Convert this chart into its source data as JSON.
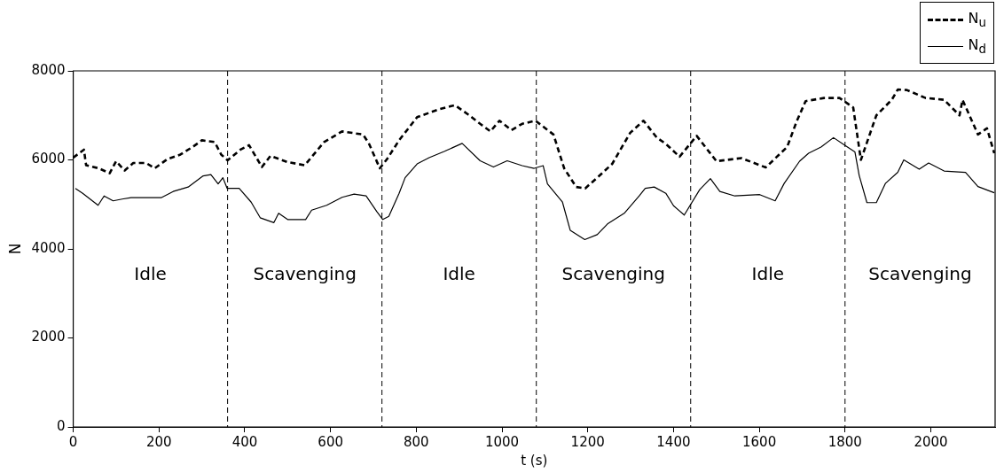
{
  "chart_data": {
    "type": "line",
    "xlabel": "t (s)",
    "ylabel": "N",
    "xlim": [
      0,
      2150
    ],
    "xticks": [
      0,
      200,
      400,
      600,
      800,
      1000,
      1200,
      1400,
      1600,
      1800,
      2000
    ],
    "ylim": [
      0,
      8000
    ],
    "yticks": [
      0,
      2000,
      4000,
      6000,
      8000
    ],
    "grid": false,
    "legend": "top right",
    "marker": "none",
    "series": [
      {
        "name": "N$_{u}$",
        "color": "#000000",
        "line_style": "dashed",
        "x": [
          0,
          25,
          30,
          60,
          85,
          100,
          120,
          140,
          170,
          190,
          220,
          250,
          280,
          300,
          330,
          345,
          360,
          390,
          410,
          440,
          460,
          500,
          540,
          585,
          627,
          676,
          690,
          715,
          732,
          760,
          802,
          851,
          890,
          921,
          949,
          973,
          994,
          1022,
          1047,
          1078,
          1120,
          1145,
          1173,
          1194,
          1222,
          1257,
          1299,
          1330,
          1361,
          1382,
          1414,
          1454,
          1500,
          1558,
          1615,
          1665,
          1687,
          1708,
          1751,
          1787,
          1819,
          1837,
          1873,
          1909,
          1923,
          1944,
          1988,
          2031,
          2067,
          2074,
          2110,
          2131,
          2148
        ],
        "values": [
          6050,
          6230,
          5880,
          5810,
          5700,
          5970,
          5760,
          5930,
          5930,
          5810,
          6020,
          6120,
          6300,
          6440,
          6400,
          6120,
          5990,
          6230,
          6330,
          5840,
          6090,
          5950,
          5880,
          6400,
          6640,
          6570,
          6360,
          5810,
          6020,
          6440,
          6960,
          7130,
          7230,
          7020,
          6810,
          6640,
          6880,
          6670,
          6810,
          6880,
          6570,
          5810,
          5390,
          5360,
          5600,
          5910,
          6610,
          6880,
          6500,
          6360,
          6070,
          6540,
          5970,
          6040,
          5830,
          6290,
          6860,
          7320,
          7390,
          7390,
          7180,
          6000,
          7000,
          7350,
          7580,
          7570,
          7390,
          7350,
          7000,
          7350,
          6570,
          6710,
          6150
        ]
      },
      {
        "name": "N$_{d}$",
        "color": "#000000",
        "line_style": "solid",
        "x": [
          5,
          22,
          58,
          72,
          93,
          114,
          135,
          170,
          205,
          233,
          268,
          303,
          321,
          338,
          349,
          359,
          387,
          415,
          436,
          468,
          479,
          500,
          542,
          556,
          591,
          627,
          655,
          683,
          708,
          722,
          736,
          760,
          774,
          802,
          830,
          865,
          907,
          949,
          980,
          1012,
          1047,
          1075,
          1096,
          1106,
          1141,
          1159,
          1193,
          1222,
          1246,
          1285,
          1320,
          1334,
          1355,
          1382,
          1400,
          1425,
          1461,
          1486,
          1508,
          1543,
          1601,
          1637,
          1658,
          1694,
          1715,
          1744,
          1773,
          1801,
          1823,
          1833,
          1851,
          1873,
          1894,
          1923,
          1937,
          1973,
          1995,
          2031,
          2081,
          2110,
          2148
        ],
        "values": [
          5360,
          5250,
          4980,
          5190,
          5080,
          5120,
          5150,
          5150,
          5150,
          5290,
          5390,
          5640,
          5670,
          5460,
          5600,
          5360,
          5360,
          5050,
          4700,
          4590,
          4800,
          4660,
          4660,
          4870,
          4980,
          5160,
          5230,
          5190,
          4840,
          4660,
          4730,
          5250,
          5600,
          5910,
          6050,
          6190,
          6370,
          5980,
          5840,
          5980,
          5870,
          5810,
          5870,
          5460,
          5050,
          4420,
          4210,
          4320,
          4560,
          4800,
          5190,
          5360,
          5390,
          5250,
          4970,
          4760,
          5330,
          5580,
          5290,
          5190,
          5220,
          5080,
          5470,
          5970,
          6150,
          6290,
          6500,
          6320,
          6180,
          5650,
          5040,
          5040,
          5470,
          5720,
          6000,
          5790,
          5930,
          5750,
          5720,
          5400,
          5260
        ]
      }
    ],
    "ref_lines": [
      {
        "axis": "x",
        "value": 360,
        "color": "#000000",
        "line_style": "dashed"
      },
      {
        "axis": "x",
        "value": 720,
        "color": "#000000",
        "line_style": "dashed"
      },
      {
        "axis": "x",
        "value": 1080,
        "color": "#000000",
        "line_style": "dashed"
      },
      {
        "axis": "x",
        "value": 1440,
        "color": "#000000",
        "line_style": "dashed"
      },
      {
        "axis": "x",
        "value": 1800,
        "color": "#000000",
        "line_style": "dashed"
      }
    ],
    "annotations": [
      "Idle",
      "Scavenging",
      "Idle",
      "Scavenging",
      "Idle",
      "Scavenging"
    ]
  }
}
